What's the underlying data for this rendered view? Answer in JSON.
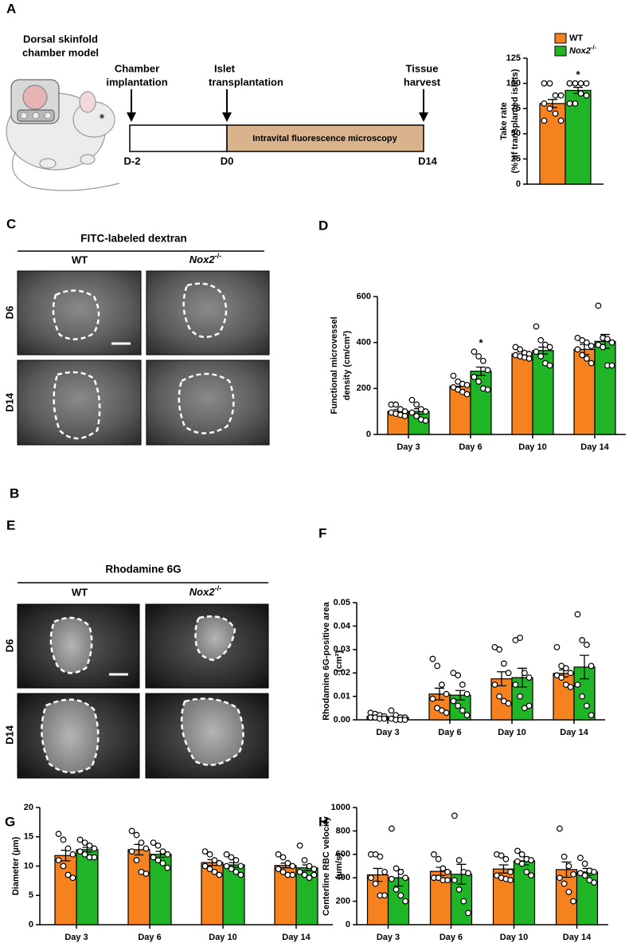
{
  "panel_a": {
    "label": "A",
    "model_title": [
      "Dorsal skinfold",
      "chamber model"
    ],
    "timeline": {
      "events": [
        {
          "label": [
            "Chamber",
            "implantation"
          ],
          "day": "D-2"
        },
        {
          "label": [
            "Islet",
            "transplantation"
          ],
          "day": "D0"
        },
        {
          "label": [
            "Tissue",
            "harvest"
          ],
          "day": "D14"
        }
      ],
      "phase": "Intravital fluorescence microscopy"
    }
  },
  "panel_c": {
    "label": "C",
    "title": "FITC-labeled dextran",
    "columns": [
      "WT",
      "Nox2-/-"
    ],
    "rows": [
      "D6",
      "D14"
    ]
  },
  "panel_e": {
    "label": "E",
    "title": "Rhodamine 6G",
    "columns": [
      "WT",
      "Nox2-/-"
    ],
    "rows": [
      "D6",
      "D14"
    ]
  },
  "chart_data": [
    {
      "type": "bar",
      "label": "B",
      "ylabel": [
        "Take rate",
        "(% of transplanted islets)"
      ],
      "categories": [
        null
      ],
      "ylim": [
        0,
        125
      ],
      "yticks": [
        0,
        25,
        50,
        75,
        100,
        125
      ],
      "series": [
        {
          "name": "WT",
          "color": "#f5821f",
          "values": [
            80
          ],
          "errors": [
            4
          ],
          "points": [
            [
              100,
              100,
              88,
              88,
              80,
              75,
              70,
              63,
              63
            ]
          ],
          "significance": [
            null
          ]
        },
        {
          "name": "Nox2-/-",
          "color": "#1fb526",
          "values": [
            93
          ],
          "errors": [
            3
          ],
          "points": [
            [
              100,
              100,
              100,
              100,
              100,
              100,
              90,
              88,
              80,
              80
            ]
          ],
          "significance": [
            "*"
          ]
        }
      ]
    },
    {
      "type": "bar",
      "label": "D",
      "ylabel": [
        "Functional microvessel",
        "density (cm/cm²)"
      ],
      "categories": [
        "Day 3",
        "Day 6",
        "Day 10",
        "Day 14"
      ],
      "ylim": [
        0,
        600
      ],
      "yticks": [
        0,
        200,
        400,
        600
      ],
      "series": [
        {
          "color": "#f5821f",
          "values": [
            100,
            210,
            350,
            370
          ],
          "errors": [
            8,
            15,
            10,
            22
          ],
          "points": [
            [
              130,
              130,
              110,
              100,
              95,
              90,
              85,
              80
            ],
            [
              255,
              230,
              220,
              215,
              205,
              195,
              185,
              175
            ],
            [
              380,
              370,
              355,
              350,
              345,
              340,
              335,
              330
            ],
            [
              420,
              410,
              400,
              385,
              370,
              345,
              330,
              310
            ]
          ],
          "significance": [
            null,
            null,
            null,
            null
          ]
        },
        {
          "color": "#1fb526",
          "values": [
            100,
            275,
            365,
            405
          ],
          "errors": [
            12,
            18,
            15,
            30
          ],
          "points": [
            [
              150,
              130,
              110,
              100,
              95,
              80,
              65,
              60
            ],
            [
              360,
              340,
              320,
              280,
              250,
              230,
              200,
              195
            ],
            [
              470,
              410,
              390,
              380,
              360,
              340,
              310,
              300
            ],
            [
              560,
              420,
              415,
              400,
              390,
              380,
              300,
              300
            ]
          ],
          "significance": [
            null,
            "*",
            null,
            null
          ]
        }
      ]
    },
    {
      "type": "bar",
      "label": "F",
      "ylabel": [
        "Rhodamine 6G-positive area",
        "(cm²)"
      ],
      "categories": [
        "Day 3",
        "Day 6",
        "Day 10",
        "Day 14"
      ],
      "ylim": [
        0,
        0.05
      ],
      "yticks": [
        {
          "value": 0,
          "label": "0.00"
        },
        0.01,
        0.02,
        0.03,
        0.04,
        0.05
      ],
      "series": [
        {
          "color": "#f5821f",
          "values": [
            0.0015,
            0.011,
            0.0175,
            0.0198
          ],
          "errors": [
            0.0003,
            0.0025,
            0.003,
            0.0015
          ],
          "points": [
            [
              0.003,
              0.0025,
              0.002,
              0.0015,
              0.001,
              0.001,
              0.0005,
              0.0005
            ],
            [
              0.026,
              0.023,
              0.015,
              0.011,
              0.009,
              0.005,
              0.004,
              0.003
            ],
            [
              0.031,
              0.03,
              0.024,
              0.02,
              0.015,
              0.01,
              0.008,
              0.007
            ],
            [
              0.031,
              0.023,
              0.022,
              0.02,
              0.019,
              0.018,
              0.015,
              0.014
            ]
          ],
          "significance": [
            null,
            null,
            null,
            null
          ]
        },
        {
          "color": "#1fb526",
          "values": [
            0.001,
            0.0105,
            0.018,
            0.0225
          ],
          "errors": [
            0.0003,
            0.002,
            0.004,
            0.005
          ],
          "points": [
            [
              0.004,
              0.002,
              0.001,
              0.001,
              0.0005,
              0,
              0,
              0
            ],
            [
              0.02,
              0.019,
              0.015,
              0.011,
              0.008,
              0.006,
              0.004,
              0.002
            ],
            [
              0.034,
              0.035,
              0.02,
              0.018,
              0.015,
              0.01,
              0.005,
              0.006
            ],
            [
              0.045,
              0.034,
              0.032,
              0.023,
              0.015,
              0.01,
              0.006,
              0.002
            ]
          ],
          "significance": [
            null,
            null,
            null,
            null
          ]
        }
      ]
    },
    {
      "type": "bar",
      "label": "G",
      "ylabel": [
        "Diameter (µm)"
      ],
      "categories": [
        "Day 3",
        "Day 6",
        "Day 10",
        "Day 14"
      ],
      "ylim": [
        0,
        20
      ],
      "yticks": [
        0,
        5,
        10,
        15,
        20
      ],
      "series": [
        {
          "color": "#f5821f",
          "values": [
            11.8,
            12.8,
            10.6,
            10.1
          ],
          "errors": [
            0.9,
            0.9,
            0.5,
            0.4
          ],
          "points": [
            [
              15.5,
              14.5,
              13,
              12,
              11,
              10,
              8.5,
              8
            ],
            [
              16,
              15.3,
              14,
              13,
              12.5,
              11,
              9,
              8.7
            ],
            [
              12.5,
              12,
              11,
              10.5,
              10,
              9.5,
              9,
              8.5
            ],
            [
              12,
              11.5,
              10.5,
              10,
              9.5,
              9,
              8.5,
              8.5
            ]
          ],
          "significance": [
            null,
            null,
            null,
            null
          ]
        },
        {
          "color": "#1fb526",
          "values": [
            12.8,
            12.0,
            10.2,
            9.7
          ],
          "errors": [
            0.4,
            0.5,
            0.4,
            0.5
          ],
          "points": [
            [
              14.5,
              14,
              13.5,
              13,
              12.5,
              12,
              11.5,
              11.5
            ],
            [
              14,
              13.5,
              12.5,
              12,
              11.5,
              11,
              10.5,
              9.7
            ],
            [
              12,
              11.5,
              11,
              10,
              10,
              9.5,
              9,
              8.5
            ],
            [
              13.5,
              11,
              10,
              9.5,
              9,
              8.5,
              8,
              8.5
            ]
          ],
          "significance": [
            null,
            null,
            null,
            null
          ]
        }
      ]
    },
    {
      "type": "bar",
      "label": "H",
      "ylabel": [
        "Centerline RBC velocity",
        "(µm/s)"
      ],
      "categories": [
        "Day 3",
        "Day 6",
        "Day 10",
        "Day 14"
      ],
      "ylim": [
        0,
        1000
      ],
      "yticks": [
        0,
        200,
        400,
        600,
        800,
        1000
      ],
      "series": [
        {
          "color": "#f5821f",
          "values": [
            425,
            455,
            475,
            470
          ],
          "errors": [
            55,
            35,
            35,
            65
          ],
          "points": [
            [
              600,
              600,
              580,
              450,
              400,
              350,
              250,
              250
            ],
            [
              600,
              560,
              480,
              450,
              400,
              400,
              380,
              380
            ],
            [
              600,
              590,
              560,
              450,
              420,
              400,
              390,
              380
            ],
            [
              820,
              580,
              500,
              430,
              400,
              350,
              280,
              200
            ]
          ],
          "significance": [
            null,
            null,
            null,
            null
          ]
        },
        {
          "color": "#1fb526",
          "values": [
            400,
            430,
            545,
            450
          ],
          "errors": [
            70,
            85,
            35,
            30
          ],
          "points": [
            [
              820,
              480,
              450,
              400,
              390,
              300,
              250,
              200
            ],
            [
              930,
              550,
              450,
              440,
              380,
              300,
              200,
              100
            ],
            [
              630,
              600,
              560,
              550,
              540,
              520,
              450,
              420
            ],
            [
              570,
              520,
              460,
              450,
              440,
              420,
              380,
              360
            ]
          ],
          "significance": [
            null,
            null,
            null,
            null
          ]
        }
      ]
    }
  ]
}
